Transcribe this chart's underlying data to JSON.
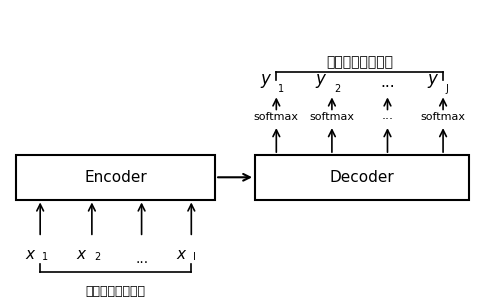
{
  "title": "正規化後の材料名",
  "bottom_label": "レシピ中の材料名",
  "encoder_label": "Encoder",
  "decoder_label": "Decoder",
  "softmax_labels": [
    "softmax",
    "softmax",
    "...",
    "softmax"
  ],
  "x_subscripts": [
    "1",
    "2",
    "...",
    "I"
  ],
  "y_subscripts": [
    "1",
    "2",
    "...",
    "J"
  ],
  "bg_color": "#ffffff",
  "box_color": "#ffffff",
  "box_edge": "#000000",
  "text_color": "#000000",
  "figsize": [
    4.9,
    3.08
  ],
  "dpi": 100
}
